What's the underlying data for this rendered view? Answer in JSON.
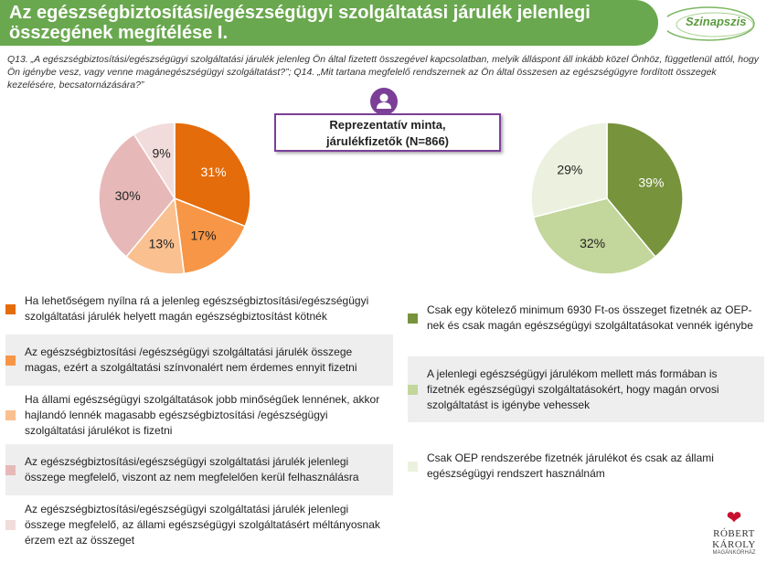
{
  "header": {
    "title_line1": "Az egészségbiztosítási/egészségügyi szolgáltatási járulék jelenlegi",
    "title_line2": "összegének megítélése I.",
    "brand": "Szinapszis"
  },
  "question": "Q13. „A egészségbiztosítási/egészségügyi szolgáltatási járulék jelenleg Ön által fizetett összegével kapcsolatban, melyik álláspont áll inkább közel Önhöz, függetlenül attól, hogy Ön igénybe vesz, vagy venne magánegészségügyi szolgáltatást?”; Q14. „Mit tartana megfelelő rendszernek az Ön által összesen az egészségügyre fordított összegek kezelésére, becsatornázására?”",
  "sample": {
    "line1": "Reprezentatív minta,",
    "line2": "járulékfizetők (N=866)"
  },
  "footer": {
    "name": "RÓBERT KÁROLY",
    "sub": "MAGÁNKÓRHÁZ"
  },
  "chart_data": [
    {
      "type": "pie",
      "values": [
        31,
        17,
        13,
        30,
        9
      ],
      "labels": [
        "31%",
        "17%",
        "13%",
        "30%",
        "9%"
      ],
      "colors": [
        "#e46c0a",
        "#f79646",
        "#fac090",
        "#e6b9b8",
        "#f2dcdb"
      ],
      "legend": [
        "Ha lehetőségem nyílna rá a jelenleg egészségbiztosítási/egészségügyi szolgáltatási járulék helyett magán egészségbiztosítást kötnék",
        "Az egészségbiztosítási /egészségügyi szolgáltatási járulék összege magas, ezért a szolgáltatási színvonalért nem érdemes ennyit fizetni",
        "Ha állami egészségügyi szolgáltatások jobb minőségűek lennének, akkor hajlandó lennék magasabb egészségbiztosítási /egészségügyi szolgáltatási járulékot is fizetni",
        "Az egészségbiztosítási/egészségügyi szolgáltatási járulék jelenlegi összege megfelelő, viszont az nem megfelelően kerül felhasználásra",
        "Az egészségbiztosítási/egészségügyi szolgáltatási járulék jelenlegi összege megfelelő, az állami egészségügyi szolgáltatásért méltányosnak érzem ezt az összeget"
      ]
    },
    {
      "type": "pie",
      "values": [
        39,
        32,
        29
      ],
      "labels": [
        "39%",
        "32%",
        "29%"
      ],
      "colors": [
        "#77933c",
        "#c3d69b",
        "#ebf1de"
      ],
      "legend": [
        "Csak egy kötelező minimum 6930 Ft-os összeget fizetnék az OEP-nek és csak magán egészségügyi szolgáltatásokat vennék igénybe",
        "A jelenlegi egészségügyi járulékom mellett más formában is fizetnék egészségügyi szolgáltatásokért, hogy magán orvosi szolgáltatást is igénybe vehessek",
        "Csak OEP rendszerébe fizetnék járulékot és csak az állami egészségügyi rendszert használnám"
      ]
    }
  ]
}
